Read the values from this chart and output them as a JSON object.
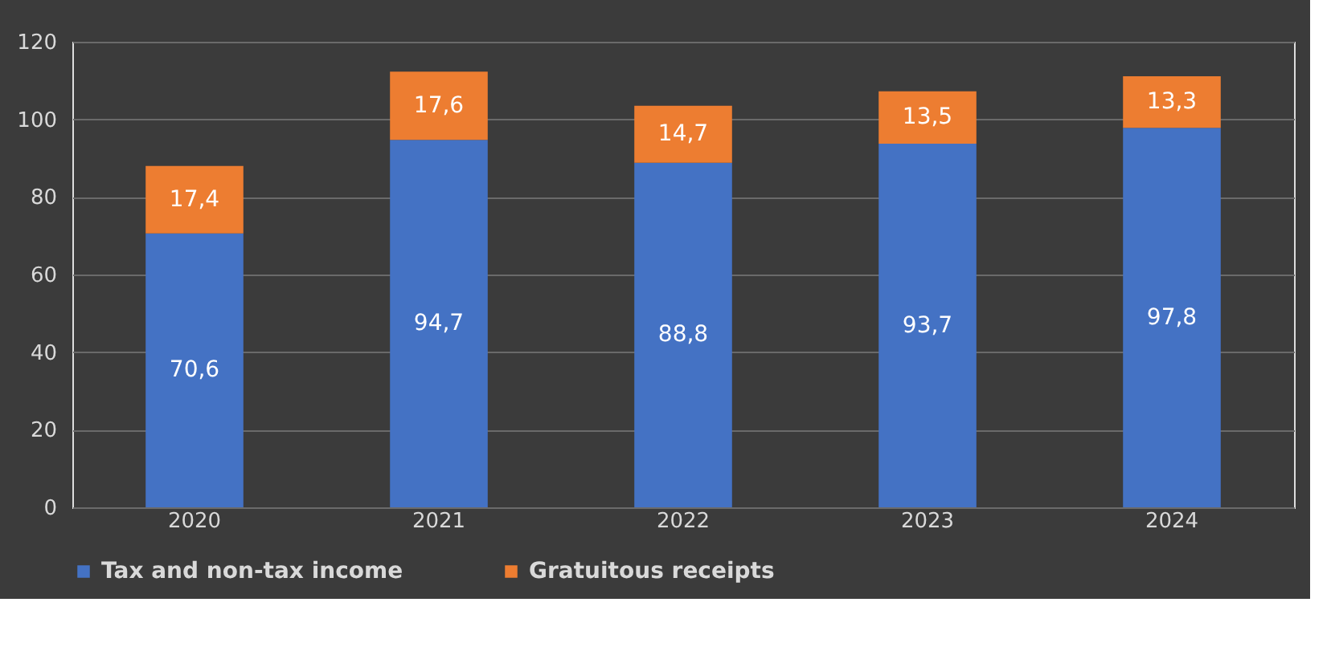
{
  "chart_data": {
    "type": "bar",
    "stacked": true,
    "categories": [
      "2020",
      "2021",
      "2022",
      "2023",
      "2024"
    ],
    "series": [
      {
        "name": "Tax and non-tax income",
        "color": "#4472c4",
        "values": [
          70.6,
          94.7,
          88.8,
          93.7,
          97.8
        ],
        "value_labels": [
          "70,6",
          "94,7",
          "88,8",
          "93,7",
          "97,8"
        ]
      },
      {
        "name": "Gratuitous receipts",
        "color": "#ed7d31",
        "values": [
          17.4,
          17.6,
          14.7,
          13.5,
          13.3
        ],
        "value_labels": [
          "17,4",
          "17,6",
          "14,7",
          "13,5",
          "13,3"
        ]
      }
    ],
    "ylim": [
      0,
      120
    ],
    "yticks": [
      0,
      20,
      40,
      60,
      80,
      100,
      120
    ],
    "grid": "y",
    "legend": "bottom"
  }
}
